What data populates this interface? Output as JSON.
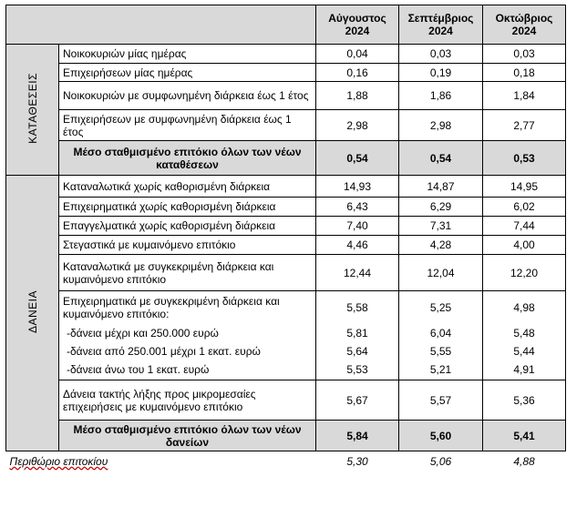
{
  "columns": [
    "Αύγουστος\n2024",
    "Σεπτέμβριος\n2024",
    "Οκτώβριος\n2024"
  ],
  "deposits": {
    "label": "ΚΑΤΑΘΕΣΕΙΣ",
    "rows": [
      {
        "label": "Νοικοκυριών μίας ημέρας",
        "v": [
          "0,04",
          "0,03",
          "0,03"
        ]
      },
      {
        "label": "Επιχειρήσεων μίας ημέρας",
        "v": [
          "0,16",
          "0,19",
          "0,18"
        ]
      },
      {
        "label": "Νοικοκυριών με συμφωνημένη διάρκεια έως 1 έτος",
        "v": [
          "1,88",
          "1,86",
          "1,84"
        ]
      },
      {
        "label": "Επιχειρήσεων με συμφωνημένη διάρκεια έως 1 έτος",
        "v": [
          "2,98",
          "2,98",
          "2,77"
        ]
      }
    ],
    "total": {
      "label": "Μέσο σταθμισμένο επιτόκιο όλων των νέων καταθέσεων",
      "v": [
        "0,54",
        "0,54",
        "0,53"
      ]
    }
  },
  "loans": {
    "label": "ΔΑΝΕΙΑ",
    "rows": [
      {
        "label": "Καταναλωτικά χωρίς καθορισμένη διάρκεια",
        "v": [
          "14,93",
          "14,87",
          "14,95"
        ]
      },
      {
        "label": "Επιχειρηματικά χωρίς καθορισμένη διάρκεια",
        "v": [
          "6,43",
          "6,29",
          "6,02"
        ]
      },
      {
        "label": "Επαγγελματικά χωρίς καθορισμένη διάρκεια",
        "v": [
          "7,40",
          "7,31",
          "7,44"
        ]
      },
      {
        "label": "Στεγαστικά με κυμαινόμενο επιτόκιο",
        "v": [
          "4,46",
          "4,28",
          "4,00"
        ]
      },
      {
        "label": "Καταναλωτικά με συγκεκριμένη διάρκεια και κυμαινόμενο επιτόκιο",
        "v": [
          "12,44",
          "12,04",
          "12,20"
        ]
      },
      {
        "label": "Επιχειρηματικά με συγκεκριμένη διάρκεια και κυμαινόμενο επιτόκιο:",
        "v": [
          "5,58",
          "5,25",
          "4,98"
        ]
      },
      {
        "label": "-δάνεια μέχρι και 250.000 ευρώ",
        "v": [
          "5,81",
          "6,04",
          "5,48"
        ]
      },
      {
        "label": "-δάνεια από 250.001 μέχρι 1 εκατ. ευρώ",
        "v": [
          "5,64",
          "5,55",
          "5,44"
        ]
      },
      {
        "label": "-δάνεια άνω του 1 εκατ. ευρώ",
        "v": [
          "5,53",
          "5,21",
          "4,91"
        ]
      },
      {
        "label": "Δάνεια τακτής λήξης προς μικρομεσαίες επιχειρήσεις με κυμαινόμενο επιτόκιο",
        "v": [
          "5,67",
          "5,57",
          "5,36"
        ]
      }
    ],
    "total": {
      "label": "Μέσο σταθμισμένο επιτόκιο όλων των νέων δανείων",
      "v": [
        "5,84",
        "5,60",
        "5,41"
      ]
    }
  },
  "margin": {
    "label": "Περιθώριο επιτοκίου",
    "v": [
      "5,30",
      "5,06",
      "4,88"
    ]
  }
}
